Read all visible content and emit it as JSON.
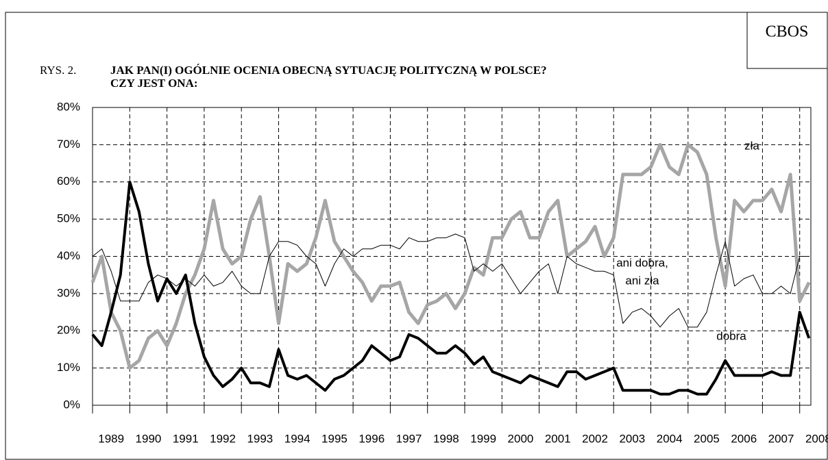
{
  "chart_data": {
    "type": "line",
    "badge": "CBOS",
    "figure_label": "RYS. 2.",
    "title_lines": [
      "JAK PAN(I) OGÓLNIE OCENIA OBECNĄ SYTUACJĘ POLITYCZNĄ W POLSCE?",
      "CZY JEST ONA:"
    ],
    "x": [
      1989,
      1989.25,
      1989.5,
      1989.75,
      1990,
      1990.25,
      1990.5,
      1990.75,
      1991,
      1991.25,
      1991.5,
      1991.75,
      1992,
      1992.25,
      1992.5,
      1992.75,
      1993,
      1993.25,
      1993.5,
      1993.75,
      1994,
      1994.25,
      1994.5,
      1994.75,
      1995,
      1995.25,
      1995.5,
      1995.75,
      1996,
      1996.25,
      1996.5,
      1996.75,
      1997,
      1997.25,
      1997.5,
      1997.75,
      1998,
      1998.25,
      1998.5,
      1998.75,
      1999,
      1999.25,
      1999.5,
      1999.75,
      2000,
      2000.25,
      2000.5,
      2000.75,
      2001,
      2001.25,
      2001.5,
      2001.75,
      2002,
      2002.25,
      2002.5,
      2002.75,
      2003,
      2003.25,
      2003.5,
      2003.75,
      2004,
      2004.25,
      2004.5,
      2004.75,
      2005,
      2005.25,
      2005.5,
      2005.75,
      2006,
      2006.25,
      2006.5,
      2006.75,
      2007,
      2007.25,
      2007.5,
      2007.75,
      2008,
      2008.25
    ],
    "series": [
      {
        "name": "zła",
        "color": "#a6a6a6",
        "width": 5,
        "values": [
          33,
          40,
          25,
          20,
          10,
          12,
          18,
          20,
          16,
          22,
          30,
          35,
          42,
          55,
          42,
          38,
          40,
          50,
          56,
          40,
          22,
          38,
          36,
          38,
          45,
          55,
          44,
          40,
          36,
          33,
          28,
          32,
          32,
          33,
          25,
          22,
          27,
          28,
          30,
          26,
          30,
          37,
          35,
          45,
          45,
          50,
          52,
          45,
          45,
          52,
          55,
          40,
          42,
          44,
          48,
          40,
          45,
          62,
          62,
          62,
          64,
          70,
          64,
          62,
          70,
          68,
          62,
          45,
          32,
          55,
          52,
          55,
          55,
          58,
          52,
          62,
          28,
          33
        ]
      },
      {
        "name_lines": [
          "ani dobra,",
          "ani zła"
        ],
        "color": "#000000",
        "width": 1,
        "values": [
          40,
          42,
          36,
          28,
          28,
          28,
          33,
          35,
          34,
          32,
          34,
          32,
          35,
          32,
          33,
          36,
          32,
          30,
          30,
          40,
          44,
          44,
          43,
          40,
          38,
          32,
          38,
          42,
          40,
          42,
          42,
          43,
          43,
          42,
          45,
          44,
          44,
          45,
          45,
          46,
          45,
          36,
          38,
          36,
          38,
          34,
          30,
          33,
          36,
          38,
          30,
          40,
          38,
          37,
          36,
          36,
          35,
          22,
          25,
          26,
          24,
          21,
          24,
          26,
          21,
          21,
          25,
          35,
          44,
          32,
          34,
          35,
          30,
          30,
          32,
          30,
          40,
          40
        ]
      },
      {
        "name": "dobra",
        "color": "#000000",
        "width": 4,
        "values": [
          19,
          16,
          25,
          35,
          60,
          52,
          38,
          28,
          34,
          30,
          35,
          22,
          13,
          8,
          5,
          7,
          10,
          6,
          6,
          5,
          15,
          8,
          7,
          8,
          6,
          4,
          7,
          8,
          10,
          12,
          16,
          14,
          12,
          13,
          19,
          18,
          16,
          14,
          14,
          16,
          14,
          11,
          13,
          9,
          8,
          7,
          6,
          8,
          7,
          6,
          5,
          9,
          9,
          7,
          8,
          9,
          10,
          4,
          4,
          4,
          4,
          3,
          3,
          4,
          4,
          3,
          3,
          7,
          12,
          8,
          8,
          8,
          8,
          9,
          8,
          8,
          25,
          18
        ]
      }
    ],
    "xlim": [
      1989,
      2008.3
    ],
    "xticks": [
      1989,
      1990,
      1991,
      1992,
      1993,
      1994,
      1995,
      1996,
      1997,
      1998,
      1999,
      2000,
      2001,
      2002,
      2003,
      2004,
      2005,
      2006,
      2007,
      2008
    ],
    "ylim": [
      0,
      80
    ],
    "yticks": [
      {
        "value": 0,
        "label": "0%"
      },
      {
        "value": 10,
        "label": "10%"
      },
      {
        "value": 20,
        "label": "20%"
      },
      {
        "value": 30,
        "label": "30%"
      },
      {
        "value": 40,
        "label": "40%"
      },
      {
        "value": 50,
        "label": "50%"
      },
      {
        "value": 60,
        "label": "60%"
      },
      {
        "value": 70,
        "label": "70%"
      },
      {
        "value": 80,
        "label": "80%"
      }
    ],
    "grid": true
  }
}
